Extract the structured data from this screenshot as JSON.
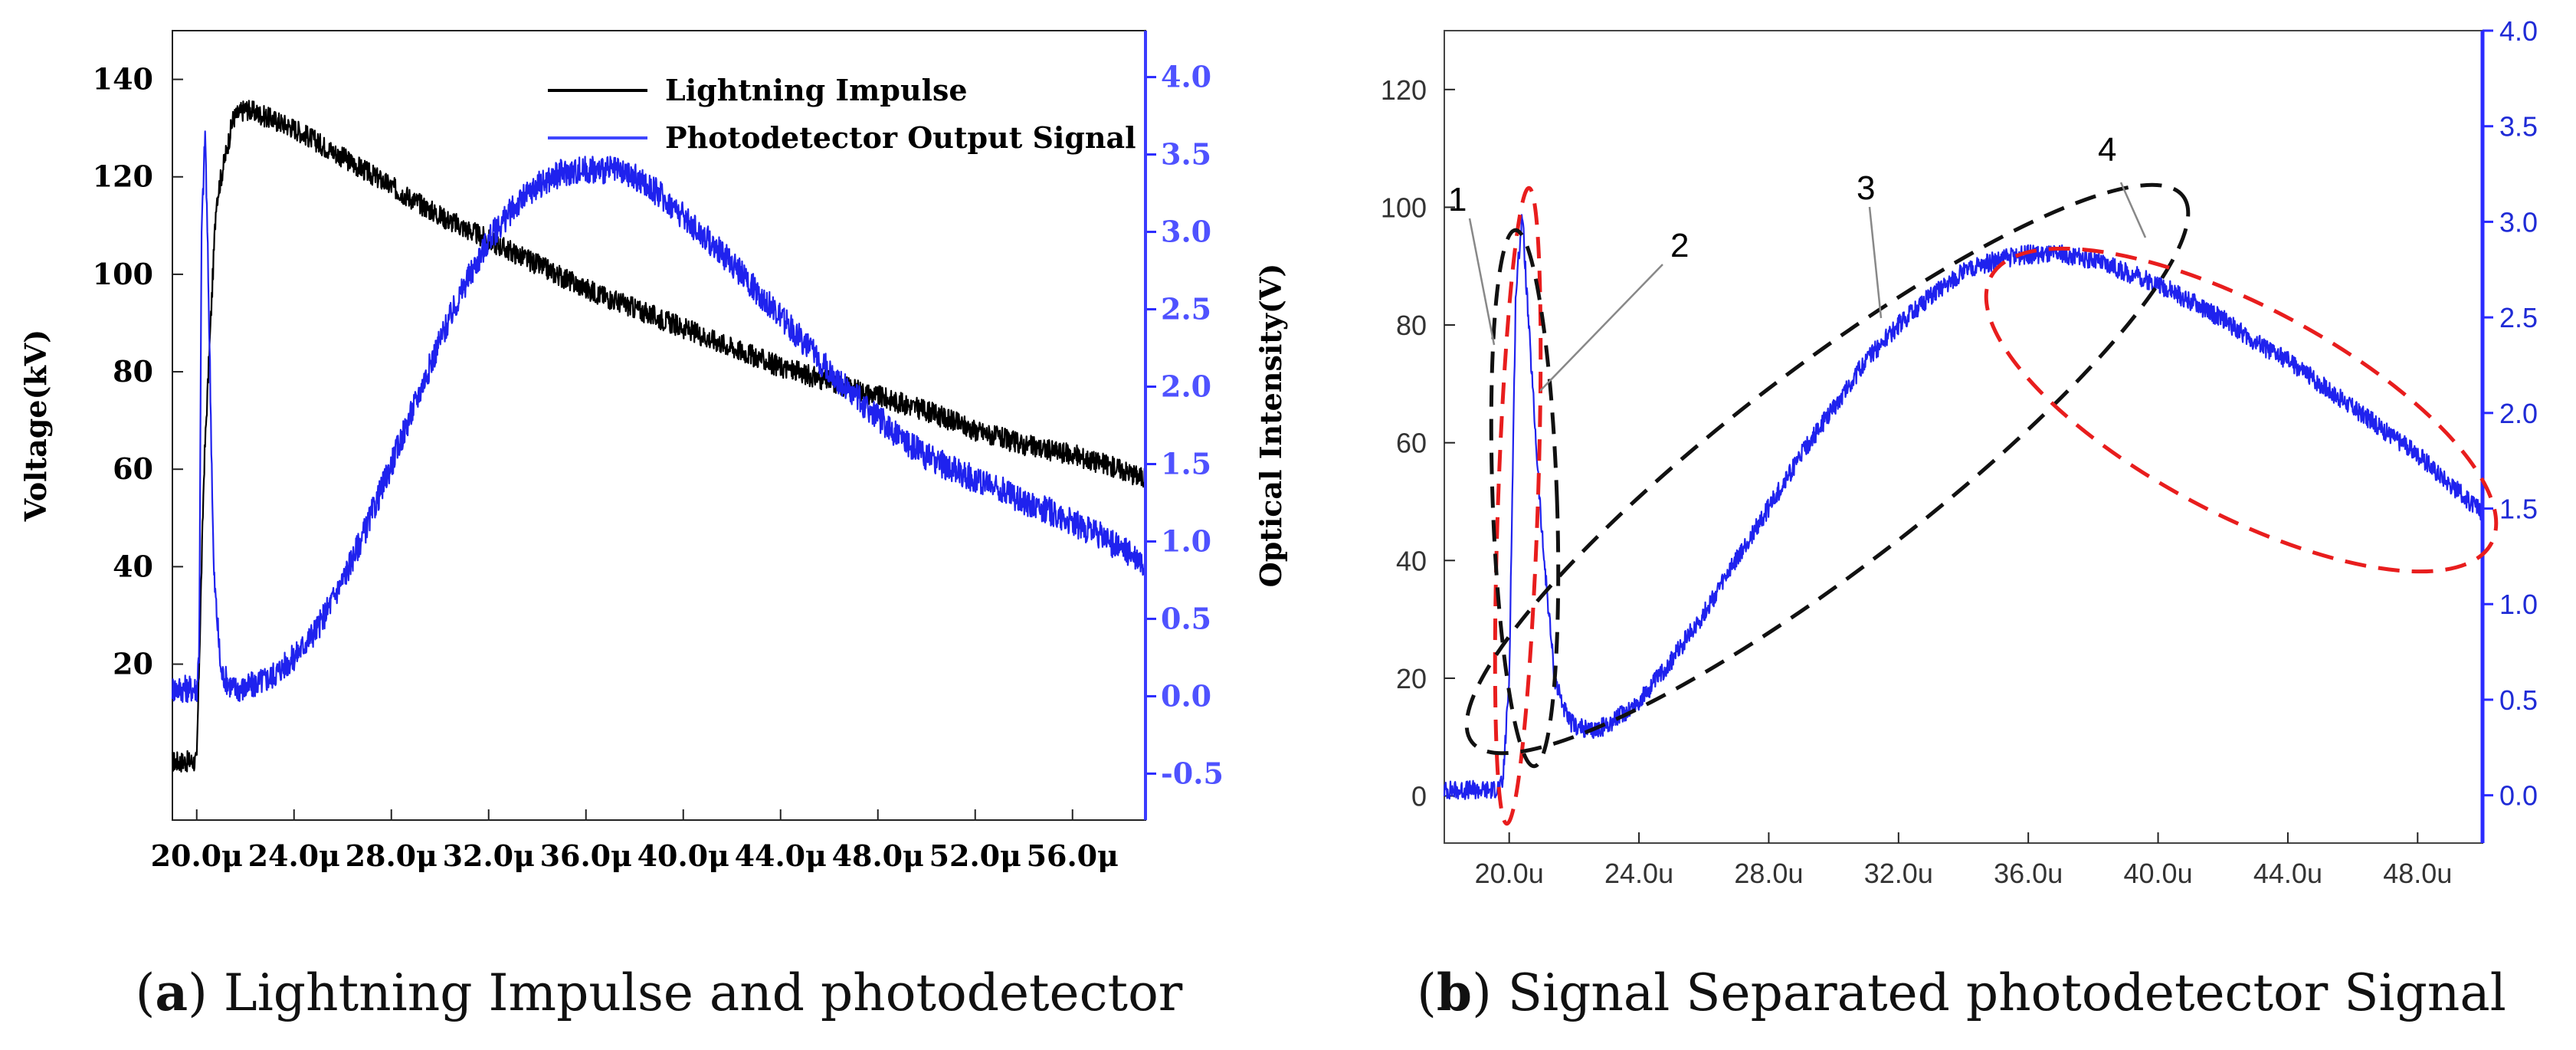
{
  "chart_data": [
    {
      "type": "line",
      "panel": "a",
      "caption_letter": "a",
      "caption_text": "Lightning Impulse and photodetector",
      "ylabel_left": "Voltage(kV)",
      "ylabel_right": "Optical Intensity(V)",
      "xlim": [
        19,
        59
      ],
      "ylim_left": [
        -12,
        150
      ],
      "ylim_right": [
        -0.8,
        4.3
      ],
      "x_ticks": [
        20,
        24,
        28,
        32,
        36,
        40,
        44,
        48,
        52,
        56
      ],
      "x_tick_labels": [
        "20.0μ",
        "24.0μ",
        "28.0μ",
        "32.0μ",
        "36.0μ",
        "40.0μ",
        "44.0μ",
        "48.0μ",
        "52.0μ",
        "56.0μ"
      ],
      "y_ticks_left": [
        20,
        40,
        60,
        80,
        100,
        120,
        140
      ],
      "y_tick_labels_left": [
        "20",
        "40",
        "60",
        "80",
        "100",
        "120",
        "140"
      ],
      "y_ticks_right": [
        -0.5,
        0,
        0.5,
        1,
        1.5,
        2,
        2.5,
        3,
        3.5,
        4
      ],
      "y_tick_labels_right": [
        "-0.5",
        "0.0",
        "0.5",
        "1.0",
        "1.5",
        "2.0",
        "2.5",
        "3.0",
        "3.5",
        "4.0"
      ],
      "legend_position": "top-right",
      "series": [
        {
          "name": "Lightning Impulse",
          "axis": "left",
          "color": "#000000",
          "x": [
            19,
            20,
            20.05,
            20.3,
            20.8,
            21.5,
            22,
            24,
            26,
            28,
            30,
            32,
            34,
            36,
            38,
            40,
            42,
            44,
            46,
            48,
            50,
            52,
            54,
            56,
            58,
            59
          ],
          "y": [
            0,
            0,
            10,
            60,
            115,
            132,
            134,
            130,
            124,
            118,
            112,
            107,
            102,
            97,
            93,
            89,
            85,
            81,
            78,
            75,
            72,
            68,
            65,
            63,
            60,
            58
          ]
        },
        {
          "name": "Photodetector Output Signal",
          "axis": "right",
          "color": "#1f22ee",
          "x": [
            19,
            20,
            20.1,
            20.2,
            20.35,
            20.5,
            20.7,
            21,
            21.5,
            22,
            23,
            24,
            25,
            26,
            27,
            28,
            29,
            30,
            31,
            32,
            33,
            34,
            35,
            36,
            37,
            38,
            39,
            40,
            41,
            42,
            43,
            44,
            45,
            46,
            47,
            48,
            49,
            50,
            51,
            52,
            53,
            54,
            55,
            56,
            57,
            58,
            59
          ],
          "y": [
            0.05,
            0.05,
            0.3,
            3.0,
            3.65,
            2.5,
            0.8,
            0.15,
            0.05,
            0.05,
            0.12,
            0.25,
            0.45,
            0.75,
            1.1,
            1.5,
            1.9,
            2.3,
            2.65,
            2.95,
            3.15,
            3.3,
            3.38,
            3.4,
            3.4,
            3.35,
            3.25,
            3.1,
            2.95,
            2.8,
            2.62,
            2.45,
            2.28,
            2.1,
            1.95,
            1.8,
            1.66,
            1.55,
            1.47,
            1.4,
            1.34,
            1.26,
            1.2,
            1.12,
            1.05,
            0.95,
            0.85
          ]
        }
      ]
    },
    {
      "type": "line",
      "panel": "b",
      "caption_letter": "b",
      "caption_text": "Signal Separated photodetector Signal",
      "xlim": [
        18,
        50
      ],
      "ylim_left": [
        -8,
        130
      ],
      "ylim_right": [
        -0.25,
        4.0
      ],
      "x_ticks": [
        20,
        24,
        28,
        32,
        36,
        40,
        44,
        48
      ],
      "x_tick_labels": [
        "20.0u",
        "24.0u",
        "28.0u",
        "32.0u",
        "36.0u",
        "40.0u",
        "44.0u",
        "48.0u"
      ],
      "y_ticks_left": [
        0,
        20,
        40,
        60,
        80,
        100,
        120
      ],
      "y_tick_labels_left": [
        "0",
        "20",
        "40",
        "60",
        "80",
        "100",
        "120"
      ],
      "y_ticks_right": [
        0,
        0.5,
        1,
        1.5,
        2,
        2.5,
        3,
        3.5,
        4
      ],
      "y_tick_labels_right": [
        "0.0",
        "0.5",
        "1.0",
        "1.5",
        "2.0",
        "2.5",
        "3.0",
        "3.5",
        "4.0"
      ],
      "annotations": [
        "1",
        "2",
        "3",
        "4"
      ],
      "series": [
        {
          "axis": "left",
          "color": "#1f22ee",
          "x": [
            18,
            19.5,
            19.8,
            20,
            20.2,
            20.4,
            20.6,
            21,
            21.4,
            21.8,
            22,
            22.5,
            23,
            24,
            25,
            26,
            27,
            28,
            29,
            30,
            31,
            32,
            33,
            34,
            35,
            36,
            37,
            38,
            39,
            40,
            41,
            42,
            43,
            44,
            45,
            46,
            47,
            48,
            49,
            50
          ],
          "y": [
            1,
            1,
            2,
            20,
            85,
            99,
            80,
            45,
            20,
            13,
            12,
            11,
            12,
            16,
            23,
            31,
            40,
            49,
            58,
            66,
            74,
            80,
            85,
            89,
            91,
            92,
            92,
            91,
            89,
            87,
            84,
            81,
            77,
            74,
            70,
            66,
            62,
            58,
            53,
            48
          ]
        }
      ]
    }
  ]
}
